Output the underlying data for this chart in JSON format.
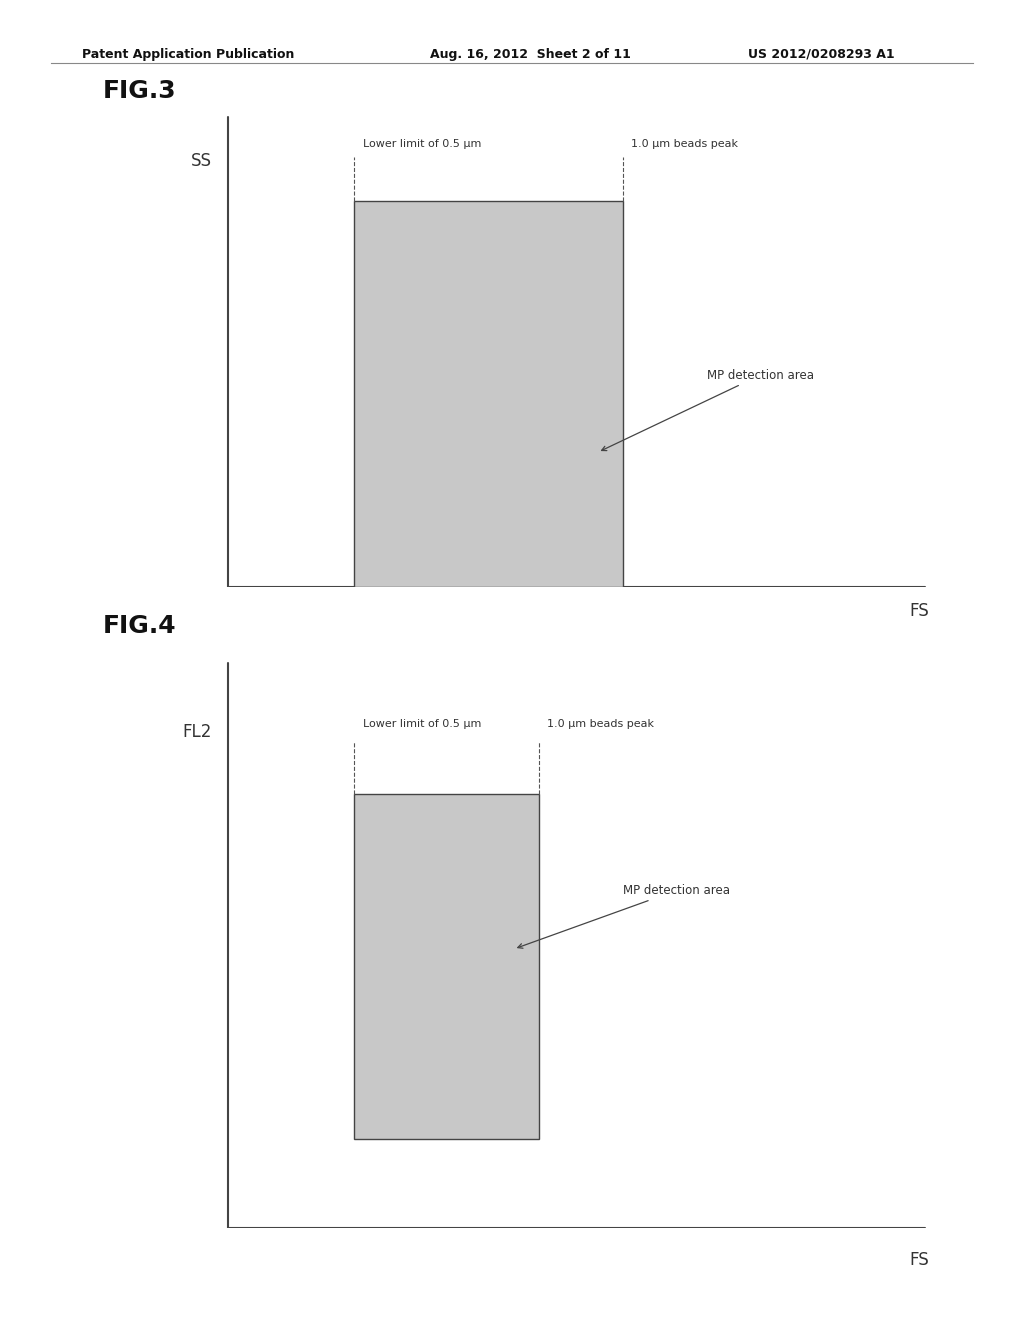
{
  "background_color": "#ffffff",
  "header_left": "Patent Application Publication",
  "header_mid": "Aug. 16, 2012  Sheet 2 of 11",
  "header_right": "US 2012/0208293 A1",
  "fig3": {
    "label": "FIG.3",
    "ylabel": "SS",
    "xlabel": "FS",
    "rect_color": "#c8c8c8",
    "rect_edge_color": "#444444",
    "lower_limit_label": "Lower limit of 0.5 μm",
    "peak_label": "1.0 μm beads peak",
    "detection_label": "MP detection area"
  },
  "fig4": {
    "label": "FIG.4",
    "ylabel": "FL2",
    "xlabel": "FS",
    "rect_color": "#c8c8c8",
    "rect_edge_color": "#444444",
    "lower_limit_label": "Lower limit of 0.5 μm",
    "peak_label": "1.0 μm beads peak",
    "detection_label": "MP detection area"
  }
}
